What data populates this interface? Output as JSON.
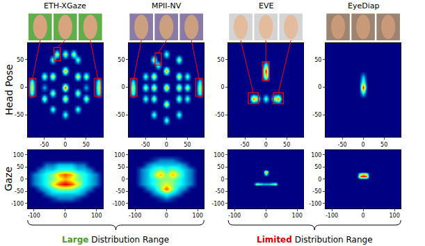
{
  "figure": {
    "columns": [
      "ETH-XGaze",
      "MPII-NV",
      "EVE",
      "EyeDiap"
    ],
    "rows": [
      "Head Pose",
      "Gaze"
    ],
    "ranges": [
      {
        "emphasis": "Large",
        "text": "Distribution Range",
        "color": "#4c9a2a",
        "datasets": [
          "ETH-XGaze",
          "MPII-NV"
        ]
      },
      {
        "emphasis": "Limited",
        "text": "Distribution Range",
        "color": "#d00000",
        "datasets": [
          "EVE",
          "EyeDiap"
        ]
      }
    ]
  },
  "chart_data": [
    {
      "type": "heatmap",
      "dataset": "ETH-XGaze",
      "row": "Head Pose",
      "xlim": [
        -90,
        90
      ],
      "ylim": [
        -90,
        80
      ],
      "xticks": [
        -50,
        0,
        50
      ],
      "yticks": [
        -50,
        0,
        50
      ],
      "zlim": [
        0,
        10
      ],
      "cell_size": 10,
      "cells": [
        [
          -80,
          0,
          6
        ],
        [
          -80,
          10,
          5
        ],
        [
          -80,
          -10,
          5
        ],
        [
          -50,
          20,
          6
        ],
        [
          -50,
          -20,
          6
        ],
        [
          -50,
          0,
          3
        ],
        [
          -30,
          50,
          5
        ],
        [
          -20,
          60,
          6
        ],
        [
          -30,
          20,
          7
        ],
        [
          -30,
          -10,
          6
        ],
        [
          -30,
          -40,
          5
        ],
        [
          0,
          60,
          6
        ],
        [
          0,
          30,
          8
        ],
        [
          0,
          0,
          9
        ],
        [
          0,
          -20,
          7
        ],
        [
          0,
          -50,
          5
        ],
        [
          30,
          50,
          5
        ],
        [
          20,
          60,
          6
        ],
        [
          30,
          20,
          7
        ],
        [
          30,
          -10,
          6
        ],
        [
          30,
          -40,
          5
        ],
        [
          50,
          20,
          6
        ],
        [
          50,
          -20,
          6
        ],
        [
          50,
          0,
          3
        ],
        [
          80,
          0,
          6
        ],
        [
          80,
          10,
          5
        ],
        [
          80,
          -10,
          5
        ]
      ],
      "highlights": [
        [
          -86,
          -70,
          -16,
          16
        ],
        [
          -27,
          -12,
          48,
          72
        ],
        [
          70,
          86,
          -16,
          16
        ]
      ]
    },
    {
      "type": "heatmap",
      "dataset": "MPII-NV",
      "row": "Head Pose",
      "xlim": [
        -90,
        90
      ],
      "ylim": [
        -90,
        80
      ],
      "xticks": [
        -50,
        0,
        50
      ],
      "yticks": [
        -50,
        0,
        50
      ],
      "zlim": [
        0,
        10
      ],
      "cell_size": 10,
      "cells": [
        [
          -80,
          0,
          6
        ],
        [
          -80,
          -10,
          5
        ],
        [
          -80,
          10,
          4
        ],
        [
          -50,
          20,
          5
        ],
        [
          -50,
          0,
          6
        ],
        [
          -50,
          -20,
          5
        ],
        [
          -30,
          50,
          6
        ],
        [
          -20,
          40,
          5
        ],
        [
          -30,
          20,
          7
        ],
        [
          -30,
          0,
          7
        ],
        [
          -30,
          -20,
          6
        ],
        [
          -30,
          -50,
          5
        ],
        [
          0,
          60,
          5
        ],
        [
          0,
          30,
          8
        ],
        [
          0,
          0,
          8
        ],
        [
          0,
          -30,
          7
        ],
        [
          0,
          -60,
          5
        ],
        [
          30,
          50,
          6
        ],
        [
          30,
          20,
          7
        ],
        [
          30,
          0,
          7
        ],
        [
          30,
          -20,
          6
        ],
        [
          30,
          -50,
          5
        ],
        [
          50,
          20,
          5
        ],
        [
          50,
          0,
          6
        ],
        [
          50,
          -20,
          5
        ],
        [
          80,
          0,
          6
        ],
        [
          80,
          -10,
          5
        ],
        [
          80,
          10,
          4
        ]
      ],
      "highlights": [
        [
          -86,
          -70,
          -16,
          16
        ],
        [
          -27,
          -12,
          40,
          62
        ],
        [
          70,
          86,
          -16,
          16
        ]
      ]
    },
    {
      "type": "heatmap",
      "dataset": "EVE",
      "row": "Head Pose",
      "xlim": [
        -90,
        90
      ],
      "ylim": [
        -90,
        80
      ],
      "xticks": [
        -50,
        0,
        50
      ],
      "yticks": [
        -50,
        0,
        50
      ],
      "zlim": [
        0,
        10
      ],
      "cell_size": 10,
      "cells": [
        [
          0,
          20,
          7
        ],
        [
          0,
          30,
          9
        ],
        [
          0,
          40,
          5
        ],
        [
          -30,
          -20,
          8
        ],
        [
          -20,
          -20,
          5
        ],
        [
          20,
          -20,
          5
        ],
        [
          30,
          -20,
          8
        ],
        [
          0,
          -20,
          5
        ]
      ],
      "highlights": [
        [
          -42,
          -18,
          -30,
          -10
        ],
        [
          -8,
          8,
          12,
          46
        ],
        [
          18,
          42,
          -30,
          -10
        ]
      ]
    },
    {
      "type": "heatmap",
      "dataset": "EyeDiap",
      "row": "Head Pose",
      "xlim": [
        -90,
        90
      ],
      "ylim": [
        -90,
        80
      ],
      "xticks": [
        -50,
        0,
        50
      ],
      "yticks": [
        -50,
        0,
        50
      ],
      "zlim": [
        0,
        10
      ],
      "cell_size": 10,
      "cells": [
        [
          0,
          0,
          9
        ],
        [
          0,
          10,
          5
        ],
        [
          0,
          20,
          3
        ],
        [
          0,
          -10,
          4
        ]
      ]
    },
    {
      "type": "heatmap",
      "dataset": "ETH-XGaze",
      "row": "Gaze",
      "xlim": [
        -120,
        120
      ],
      "ylim": [
        -120,
        120
      ],
      "xticks": [
        -100,
        0,
        100
      ],
      "yticks": [
        -100,
        -50,
        0,
        50,
        100
      ],
      "zlim": [
        0,
        10
      ],
      "cell_size": 20,
      "cells": [
        [
          -60,
          60,
          2
        ],
        [
          -40,
          60,
          2
        ],
        [
          -20,
          60,
          3
        ],
        [
          0,
          60,
          3
        ],
        [
          20,
          60,
          3
        ],
        [
          40,
          60,
          2
        ],
        [
          60,
          60,
          2
        ],
        [
          -80,
          40,
          2
        ],
        [
          -60,
          40,
          3
        ],
        [
          -40,
          40,
          3
        ],
        [
          -20,
          40,
          4
        ],
        [
          0,
          40,
          4
        ],
        [
          20,
          40,
          4
        ],
        [
          40,
          40,
          3
        ],
        [
          60,
          40,
          3
        ],
        [
          80,
          40,
          2
        ],
        [
          -100,
          20,
          2
        ],
        [
          -80,
          20,
          3
        ],
        [
          -60,
          20,
          4
        ],
        [
          -40,
          20,
          5
        ],
        [
          -20,
          20,
          7
        ],
        [
          0,
          20,
          8
        ],
        [
          20,
          20,
          7
        ],
        [
          40,
          20,
          5
        ],
        [
          60,
          20,
          4
        ],
        [
          80,
          20,
          3
        ],
        [
          100,
          20,
          2
        ],
        [
          -100,
          0,
          2
        ],
        [
          -80,
          0,
          3
        ],
        [
          -60,
          0,
          4
        ],
        [
          -40,
          0,
          5
        ],
        [
          -20,
          0,
          6
        ],
        [
          0,
          0,
          7
        ],
        [
          20,
          0,
          6
        ],
        [
          40,
          0,
          5
        ],
        [
          60,
          0,
          4
        ],
        [
          80,
          0,
          3
        ],
        [
          100,
          0,
          2
        ],
        [
          -100,
          -20,
          2
        ],
        [
          -80,
          -20,
          3
        ],
        [
          -60,
          -20,
          4
        ],
        [
          -40,
          -20,
          6
        ],
        [
          -20,
          -20,
          8
        ],
        [
          0,
          -20,
          9
        ],
        [
          20,
          -20,
          8
        ],
        [
          40,
          -20,
          6
        ],
        [
          60,
          -20,
          4
        ],
        [
          80,
          -20,
          3
        ],
        [
          100,
          -20,
          2
        ],
        [
          -80,
          -40,
          2
        ],
        [
          -60,
          -40,
          3
        ],
        [
          -40,
          -40,
          4
        ],
        [
          -20,
          -40,
          5
        ],
        [
          0,
          -40,
          5
        ],
        [
          20,
          -40,
          5
        ],
        [
          40,
          -40,
          4
        ],
        [
          60,
          -40,
          3
        ],
        [
          80,
          -40,
          2
        ],
        [
          -60,
          -60,
          2
        ],
        [
          -40,
          -60,
          3
        ],
        [
          -20,
          -60,
          3
        ],
        [
          0,
          -60,
          3
        ],
        [
          20,
          -60,
          3
        ],
        [
          40,
          -60,
          3
        ],
        [
          60,
          -60,
          2
        ],
        [
          -40,
          -80,
          1
        ],
        [
          -20,
          -80,
          2
        ],
        [
          0,
          -80,
          2
        ],
        [
          20,
          -80,
          2
        ],
        [
          40,
          -80,
          1
        ]
      ]
    },
    {
      "type": "heatmap",
      "dataset": "MPII-NV",
      "row": "Gaze",
      "xlim": [
        -120,
        120
      ],
      "ylim": [
        -120,
        120
      ],
      "xticks": [
        -100,
        0,
        100
      ],
      "yticks": [
        -100,
        -50,
        0,
        50,
        100
      ],
      "zlim": [
        0,
        10
      ],
      "cell_size": 20,
      "cells": [
        [
          -40,
          80,
          1
        ],
        [
          -20,
          80,
          2
        ],
        [
          0,
          80,
          2
        ],
        [
          20,
          80,
          2
        ],
        [
          40,
          80,
          1
        ],
        [
          -60,
          60,
          2
        ],
        [
          -40,
          60,
          3
        ],
        [
          -20,
          60,
          3
        ],
        [
          0,
          60,
          3
        ],
        [
          20,
          60,
          3
        ],
        [
          40,
          60,
          3
        ],
        [
          60,
          60,
          2
        ],
        [
          -80,
          40,
          2
        ],
        [
          -60,
          40,
          3
        ],
        [
          -40,
          40,
          4
        ],
        [
          -20,
          40,
          5
        ],
        [
          0,
          40,
          4
        ],
        [
          20,
          40,
          5
        ],
        [
          40,
          40,
          4
        ],
        [
          60,
          40,
          3
        ],
        [
          80,
          40,
          2
        ],
        [
          -80,
          20,
          2
        ],
        [
          -60,
          20,
          3
        ],
        [
          -40,
          20,
          5
        ],
        [
          -20,
          20,
          7
        ],
        [
          0,
          20,
          5
        ],
        [
          20,
          20,
          7
        ],
        [
          40,
          20,
          5
        ],
        [
          60,
          20,
          3
        ],
        [
          80,
          20,
          2
        ],
        [
          -80,
          0,
          2
        ],
        [
          -60,
          0,
          3
        ],
        [
          -40,
          0,
          4
        ],
        [
          -20,
          0,
          5
        ],
        [
          0,
          0,
          5
        ],
        [
          20,
          0,
          5
        ],
        [
          40,
          0,
          4
        ],
        [
          60,
          0,
          3
        ],
        [
          80,
          0,
          2
        ],
        [
          -80,
          -20,
          2
        ],
        [
          -60,
          -20,
          3
        ],
        [
          -40,
          -20,
          4
        ],
        [
          -20,
          -20,
          5
        ],
        [
          0,
          -20,
          6
        ],
        [
          20,
          -20,
          5
        ],
        [
          40,
          -20,
          4
        ],
        [
          60,
          -20,
          3
        ],
        [
          80,
          -20,
          2
        ],
        [
          -60,
          -40,
          2
        ],
        [
          -40,
          -40,
          3
        ],
        [
          -20,
          -40,
          5
        ],
        [
          0,
          -40,
          8
        ],
        [
          20,
          -40,
          5
        ],
        [
          40,
          -40,
          3
        ],
        [
          60,
          -40,
          2
        ],
        [
          -40,
          -60,
          2
        ],
        [
          -20,
          -60,
          3
        ],
        [
          0,
          -60,
          4
        ],
        [
          20,
          -60,
          3
        ],
        [
          40,
          -60,
          2
        ],
        [
          -20,
          -80,
          1
        ],
        [
          0,
          -80,
          2
        ],
        [
          20,
          -80,
          1
        ]
      ]
    },
    {
      "type": "heatmap",
      "dataset": "EVE",
      "row": "Gaze",
      "xlim": [
        -120,
        120
      ],
      "ylim": [
        -120,
        120
      ],
      "xticks": [
        -100,
        0,
        100
      ],
      "yticks": [
        -100,
        -50,
        0,
        50,
        100
      ],
      "zlim": [
        0,
        10
      ],
      "cell_size": 10,
      "cells": [
        [
          0,
          30,
          8
        ],
        [
          0,
          20,
          4
        ],
        [
          -30,
          -20,
          5
        ],
        [
          -20,
          -20,
          4
        ],
        [
          -10,
          -20,
          3
        ],
        [
          0,
          -20,
          3
        ],
        [
          10,
          -20,
          3
        ],
        [
          20,
          -20,
          4
        ],
        [
          30,
          -20,
          5
        ]
      ]
    },
    {
      "type": "heatmap",
      "dataset": "EyeDiap",
      "row": "Gaze",
      "xlim": [
        -120,
        120
      ],
      "ylim": [
        -120,
        120
      ],
      "xticks": [
        -100,
        0,
        100
      ],
      "yticks": [
        -100,
        -50,
        0,
        50,
        100
      ],
      "zlim": [
        0,
        10
      ],
      "cell_size": 10,
      "cells": [
        [
          -10,
          10,
          8
        ],
        [
          0,
          10,
          9
        ],
        [
          10,
          10,
          8
        ],
        [
          -10,
          20,
          6
        ],
        [
          0,
          20,
          7
        ],
        [
          10,
          20,
          6
        ]
      ]
    }
  ]
}
